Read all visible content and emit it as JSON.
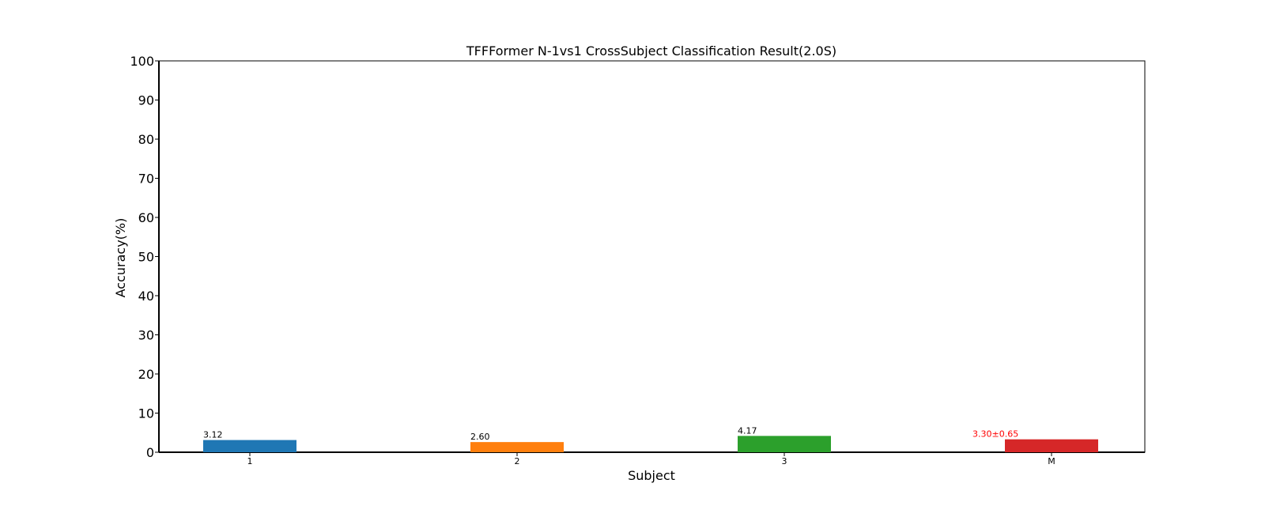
{
  "chart_data": {
    "type": "bar",
    "title": "TFFFormer N-1vs1 CrossSubject Classification Result(2.0S)",
    "xlabel": "Subject",
    "ylabel": "Accuracy(%)",
    "ylim": [
      0,
      100
    ],
    "yticks": [
      "0",
      "10",
      "20",
      "30",
      "40",
      "50",
      "60",
      "70",
      "80",
      "90",
      "100"
    ],
    "categories": [
      "1",
      "2",
      "3",
      "M"
    ],
    "values": [
      3.12,
      2.6,
      4.17,
      3.3
    ],
    "data_labels": [
      "3.12",
      "2.60",
      "4.17",
      "3.30±0.65"
    ],
    "colors": [
      "#1f77b4",
      "#ff7f0e",
      "#2ca02c",
      "#d62728"
    ],
    "label_colors": [
      "#000000",
      "#000000",
      "#000000",
      "#ff0000"
    ],
    "grid": false,
    "legend": "none"
  }
}
